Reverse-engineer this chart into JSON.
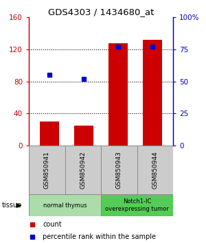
{
  "title": "GDS4303 / 1434680_at",
  "samples": [
    "GSM850941",
    "GSM850942",
    "GSM850943",
    "GSM850944"
  ],
  "counts": [
    30,
    25,
    127,
    132
  ],
  "percentiles": [
    55,
    52,
    77,
    77
  ],
  "left_ylim": [
    0,
    160
  ],
  "right_ylim": [
    0,
    100
  ],
  "left_yticks": [
    0,
    40,
    80,
    120,
    160
  ],
  "right_yticks": [
    0,
    25,
    50,
    75,
    100
  ],
  "left_yticklabels": [
    "0",
    "40",
    "80",
    "120",
    "160"
  ],
  "right_yticklabels": [
    "0",
    "25",
    "50",
    "75",
    "100%"
  ],
  "bar_color": "#cc0000",
  "dot_color": "#0000cc",
  "groups": [
    {
      "label": "normal thymus",
      "samples": [
        0,
        1
      ],
      "color": "#aaddaa"
    },
    {
      "label": "Notch1-IC\noverexpressing tumor",
      "samples": [
        2,
        3
      ],
      "color": "#55cc55"
    }
  ],
  "tissue_label": "tissue",
  "legend_items": [
    {
      "label": "count",
      "color": "#cc0000"
    },
    {
      "label": "percentile rank within the sample",
      "color": "#0000cc"
    }
  ],
  "sample_box_color": "#cccccc",
  "fig_width": 3.0,
  "fig_height": 3.54,
  "dpi": 100
}
